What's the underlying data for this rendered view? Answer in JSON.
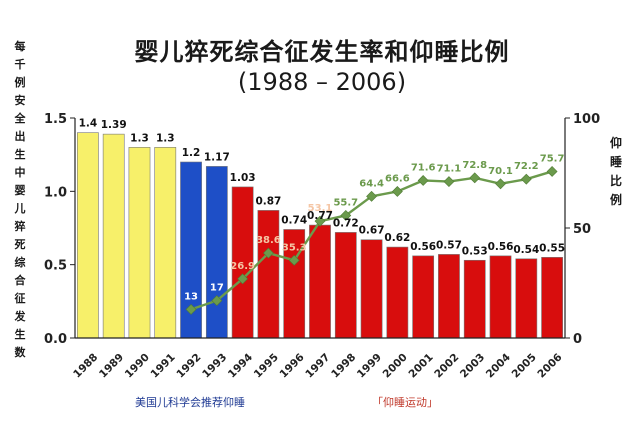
{
  "chart_data": {
    "type": "bar+line",
    "title": "婴儿猝死综合征发生率和仰睡比例",
    "subtitle": "(1988 – 2006)",
    "ylabel_left": "每千例安全出生中婴儿猝死综合征发生数",
    "ylabel_right": "仰睡比例",
    "categories": [
      "1988",
      "1989",
      "1990",
      "1991",
      "1992",
      "1993",
      "1994",
      "1995",
      "1996",
      "1997",
      "1998",
      "1999",
      "2000",
      "2001",
      "2002",
      "2003",
      "2004",
      "2005",
      "2006"
    ],
    "bars": [
      1.4,
      1.39,
      1.3,
      1.3,
      1.2,
      1.17,
      1.03,
      0.87,
      0.74,
      0.77,
      0.72,
      0.67,
      0.62,
      0.56,
      0.57,
      0.53,
      0.56,
      0.54,
      0.55
    ],
    "bar_labels": [
      "1.4",
      "1.39",
      "1.3",
      "1.3",
      "1.2",
      "1.17",
      "1.03",
      "0.87",
      "0.74",
      "0.77",
      "0.72",
      "0.67",
      "0.62",
      "0.56",
      "0.57",
      "0.53",
      "0.56",
      "0.54",
      "0.55"
    ],
    "bar_colors": [
      "#f7f06a",
      "#f7f06a",
      "#f7f06a",
      "#f7f06a",
      "#1e4fc7",
      "#1e4fc7",
      "#d80d0d",
      "#d80d0d",
      "#d80d0d",
      "#d80d0d",
      "#d80d0d",
      "#d80d0d",
      "#d80d0d",
      "#d80d0d",
      "#d80d0d",
      "#d80d0d",
      "#d80d0d",
      "#d80d0d",
      "#d80d0d"
    ],
    "line": {
      "categories": [
        "1992",
        "1993",
        "1994",
        "1995",
        "1996",
        "1997",
        "1998",
        "1999",
        "2000",
        "2001",
        "2002",
        "2003",
        "2004",
        "2005",
        "2006"
      ],
      "values": [
        13,
        17,
        26.9,
        38.6,
        35.3,
        53.1,
        55.7,
        64.4,
        66.6,
        71.6,
        71.1,
        72.8,
        70.1,
        72.2,
        75.7
      ],
      "labels": [
        "13",
        "17",
        "26.9",
        "38.6",
        "35.3",
        "53.1",
        "55.7",
        "64.4",
        "66.6",
        "71.6",
        "71.1",
        "72.8",
        "70.1",
        "72.2",
        "75.7"
      ],
      "color": "#6b9a4c"
    },
    "left_axis": {
      "ylim": [
        0,
        1.5
      ],
      "ticks": [
        0.0,
        0.5,
        1.0,
        1.5
      ],
      "tick_labels": [
        "0.0",
        "0.5",
        "1.0",
        "1.5"
      ]
    },
    "right_axis": {
      "ylim": [
        0,
        100
      ],
      "ticks": [
        0,
        50,
        100
      ],
      "tick_labels": [
        "0",
        "50",
        "100"
      ]
    },
    "grid": false,
    "legend_notes": [
      "美国儿科学会推荐仰睡",
      "「仰睡运动」"
    ],
    "note_colors": [
      "#1f3a93",
      "#c0392b"
    ]
  }
}
